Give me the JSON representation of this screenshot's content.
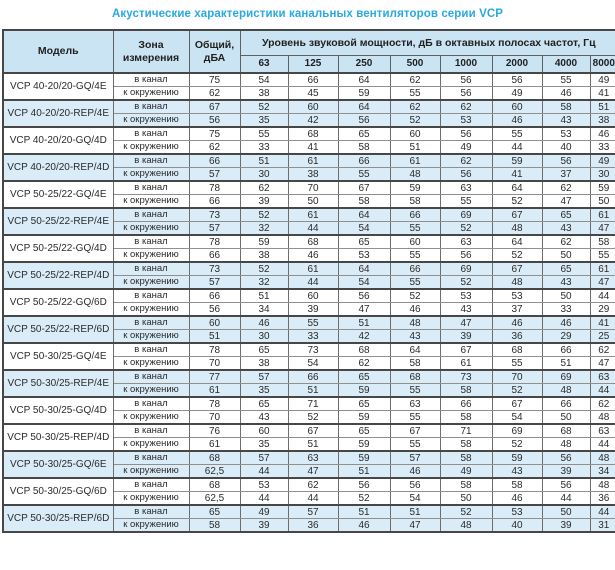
{
  "title": "Акустические характеристики канальных вентиляторов  серии VCP",
  "colors": {
    "title": "#29a9e0",
    "header_bg": "#cbe4f3",
    "row_highlight": "#d9ecf8"
  },
  "table": {
    "col_model": "Модель",
    "col_zone": "Зона измерения",
    "col_total": "Общий, дБА",
    "col_spectrum": "Уровень звуковой мощности, дБ в октавных полосах частот, Гц",
    "freqs": [
      "63",
      "125",
      "250",
      "500",
      "1000",
      "2000",
      "4000",
      "8000"
    ],
    "models": [
      {
        "name": "VCP 40-20/20-GQ/4E",
        "highlighted": false,
        "rows": [
          {
            "zone": "в канал",
            "total": "75",
            "bands": [
              54,
              66,
              64,
              62,
              56,
              56,
              55,
              49
            ]
          },
          {
            "zone": "к окружению",
            "total": "62",
            "bands": [
              38,
              45,
              59,
              55,
              56,
              49,
              46,
              41
            ]
          }
        ]
      },
      {
        "name": "VCP 40-20/20-REP/4E",
        "highlighted": true,
        "rows": [
          {
            "zone": "в канал",
            "total": "67",
            "bands": [
              52,
              60,
              64,
              62,
              62,
              60,
              58,
              51
            ]
          },
          {
            "zone": "к окружению",
            "total": "56",
            "bands": [
              35,
              42,
              56,
              52,
              53,
              46,
              43,
              38
            ]
          }
        ]
      },
      {
        "name": "VCP 40-20/20-GQ/4D",
        "highlighted": false,
        "rows": [
          {
            "zone": "в канал",
            "total": "75",
            "bands": [
              55,
              68,
              65,
              60,
              56,
              55,
              53,
              46
            ]
          },
          {
            "zone": "к окружению",
            "total": "62",
            "bands": [
              33,
              41,
              58,
              51,
              49,
              44,
              40,
              33
            ]
          }
        ]
      },
      {
        "name": "VCP 40-20/20-REP/4D",
        "highlighted": true,
        "rows": [
          {
            "zone": "в канал",
            "total": "66",
            "bands": [
              51,
              61,
              66,
              61,
              62,
              59,
              56,
              49
            ]
          },
          {
            "zone": "к окружению",
            "total": "57",
            "bands": [
              30,
              38,
              55,
              48,
              56,
              41,
              37,
              30
            ]
          }
        ]
      },
      {
        "name": "VCP 50-25/22-GQ/4E",
        "highlighted": false,
        "rows": [
          {
            "zone": "в канал",
            "total": "78",
            "bands": [
              62,
              70,
              67,
              59,
              63,
              64,
              62,
              59
            ]
          },
          {
            "zone": "к окружению",
            "total": "66",
            "bands": [
              39,
              50,
              58,
              58,
              55,
              52,
              47,
              50
            ]
          }
        ]
      },
      {
        "name": "VCP 50-25/22-REP/4E",
        "highlighted": true,
        "rows": [
          {
            "zone": "в канал",
            "total": "73",
            "bands": [
              52,
              61,
              64,
              66,
              69,
              67,
              65,
              61
            ]
          },
          {
            "zone": "к окружению",
            "total": "57",
            "bands": [
              32,
              44,
              54,
              55,
              52,
              48,
              43,
              47
            ]
          }
        ]
      },
      {
        "name": "VCP 50-25/22-GQ/4D",
        "highlighted": false,
        "rows": [
          {
            "zone": "в канал",
            "total": "78",
            "bands": [
              59,
              68,
              65,
              60,
              63,
              64,
              62,
              58
            ]
          },
          {
            "zone": "к окружению",
            "total": "66",
            "bands": [
              38,
              46,
              53,
              55,
              56,
              52,
              50,
              55
            ]
          }
        ]
      },
      {
        "name": "VCP 50-25/22-REP/4D",
        "highlighted": true,
        "rows": [
          {
            "zone": "в канал",
            "total": "73",
            "bands": [
              52,
              61,
              64,
              66,
              69,
              67,
              65,
              61
            ]
          },
          {
            "zone": "к окружению",
            "total": "57",
            "bands": [
              32,
              44,
              54,
              55,
              52,
              48,
              43,
              47
            ]
          }
        ]
      },
      {
        "name": "VCP 50-25/22-GQ/6D",
        "highlighted": false,
        "rows": [
          {
            "zone": "в канал",
            "total": "66",
            "bands": [
              51,
              60,
              56,
              52,
              53,
              53,
              50,
              44
            ]
          },
          {
            "zone": "к окружению",
            "total": "56",
            "bands": [
              34,
              39,
              47,
              46,
              43,
              37,
              33,
              29
            ]
          }
        ]
      },
      {
        "name": "VCP 50-25/22-REP/6D",
        "highlighted": true,
        "rows": [
          {
            "zone": "в канал",
            "total": "60",
            "bands": [
              46,
              55,
              51,
              48,
              47,
              46,
              46,
              41
            ]
          },
          {
            "zone": "к окружению",
            "total": "51",
            "bands": [
              30,
              33,
              42,
              43,
              39,
              36,
              29,
              25
            ]
          }
        ]
      },
      {
        "name": "VCP 50-30/25-GQ/4E",
        "highlighted": false,
        "rows": [
          {
            "zone": "в канал",
            "total": "78",
            "bands": [
              65,
              73,
              68,
              64,
              67,
              68,
              66,
              62
            ]
          },
          {
            "zone": "к окружению",
            "total": "70",
            "bands": [
              38,
              54,
              62,
              58,
              61,
              55,
              51,
              47
            ]
          }
        ]
      },
      {
        "name": "VCP 50-30/25-REP/4E",
        "highlighted": true,
        "rows": [
          {
            "zone": "в канал",
            "total": "77",
            "bands": [
              57,
              66,
              65,
              68,
              73,
              70,
              69,
              63
            ]
          },
          {
            "zone": "к окружению",
            "total": "61",
            "bands": [
              35,
              51,
              59,
              55,
              58,
              52,
              48,
              44
            ]
          }
        ]
      },
      {
        "name": "VCP 50-30/25-GQ/4D",
        "highlighted": false,
        "rows": [
          {
            "zone": "в канал",
            "total": "78",
            "bands": [
              65,
              71,
              65,
              63,
              66,
              67,
              66,
              62
            ]
          },
          {
            "zone": "к окружению",
            "total": "70",
            "bands": [
              43,
              52,
              59,
              55,
              58,
              54,
              50,
              48
            ]
          }
        ]
      },
      {
        "name": "VCP 50-30/25-REP/4D",
        "highlighted": false,
        "rows": [
          {
            "zone": "в канал",
            "total": "76",
            "bands": [
              60,
              67,
              65,
              67,
              71,
              69,
              68,
              63
            ]
          },
          {
            "zone": "к окружению",
            "total": "61",
            "bands": [
              35,
              51,
              59,
              55,
              58,
              52,
              48,
              44
            ]
          }
        ]
      },
      {
        "name": "VCP 50-30/25-GQ/6E",
        "highlighted": true,
        "rows": [
          {
            "zone": "в канал",
            "total": "68",
            "bands": [
              57,
              63,
              59,
              57,
              58,
              59,
              56,
              48
            ]
          },
          {
            "zone": "к окружению",
            "total": "62,5",
            "bands": [
              44,
              47,
              51,
              46,
              49,
              43,
              39,
              34
            ]
          }
        ]
      },
      {
        "name": "VCP 50-30/25-GQ/6D",
        "highlighted": false,
        "rows": [
          {
            "zone": "в канал",
            "total": "68",
            "bands": [
              53,
              62,
              56,
              56,
              58,
              58,
              56,
              48
            ]
          },
          {
            "zone": "к окружению",
            "total": "62,5",
            "bands": [
              44,
              44,
              52,
              54,
              50,
              46,
              44,
              36
            ]
          }
        ]
      },
      {
        "name": "VCP 50-30/25-REP/6D",
        "highlighted": true,
        "rows": [
          {
            "zone": "в канал",
            "total": "65",
            "bands": [
              49,
              57,
              51,
              51,
              52,
              53,
              50,
              44
            ]
          },
          {
            "zone": "к окружению",
            "total": "58",
            "bands": [
              39,
              36,
              46,
              47,
              48,
              40,
              39,
              31
            ]
          }
        ]
      }
    ]
  }
}
